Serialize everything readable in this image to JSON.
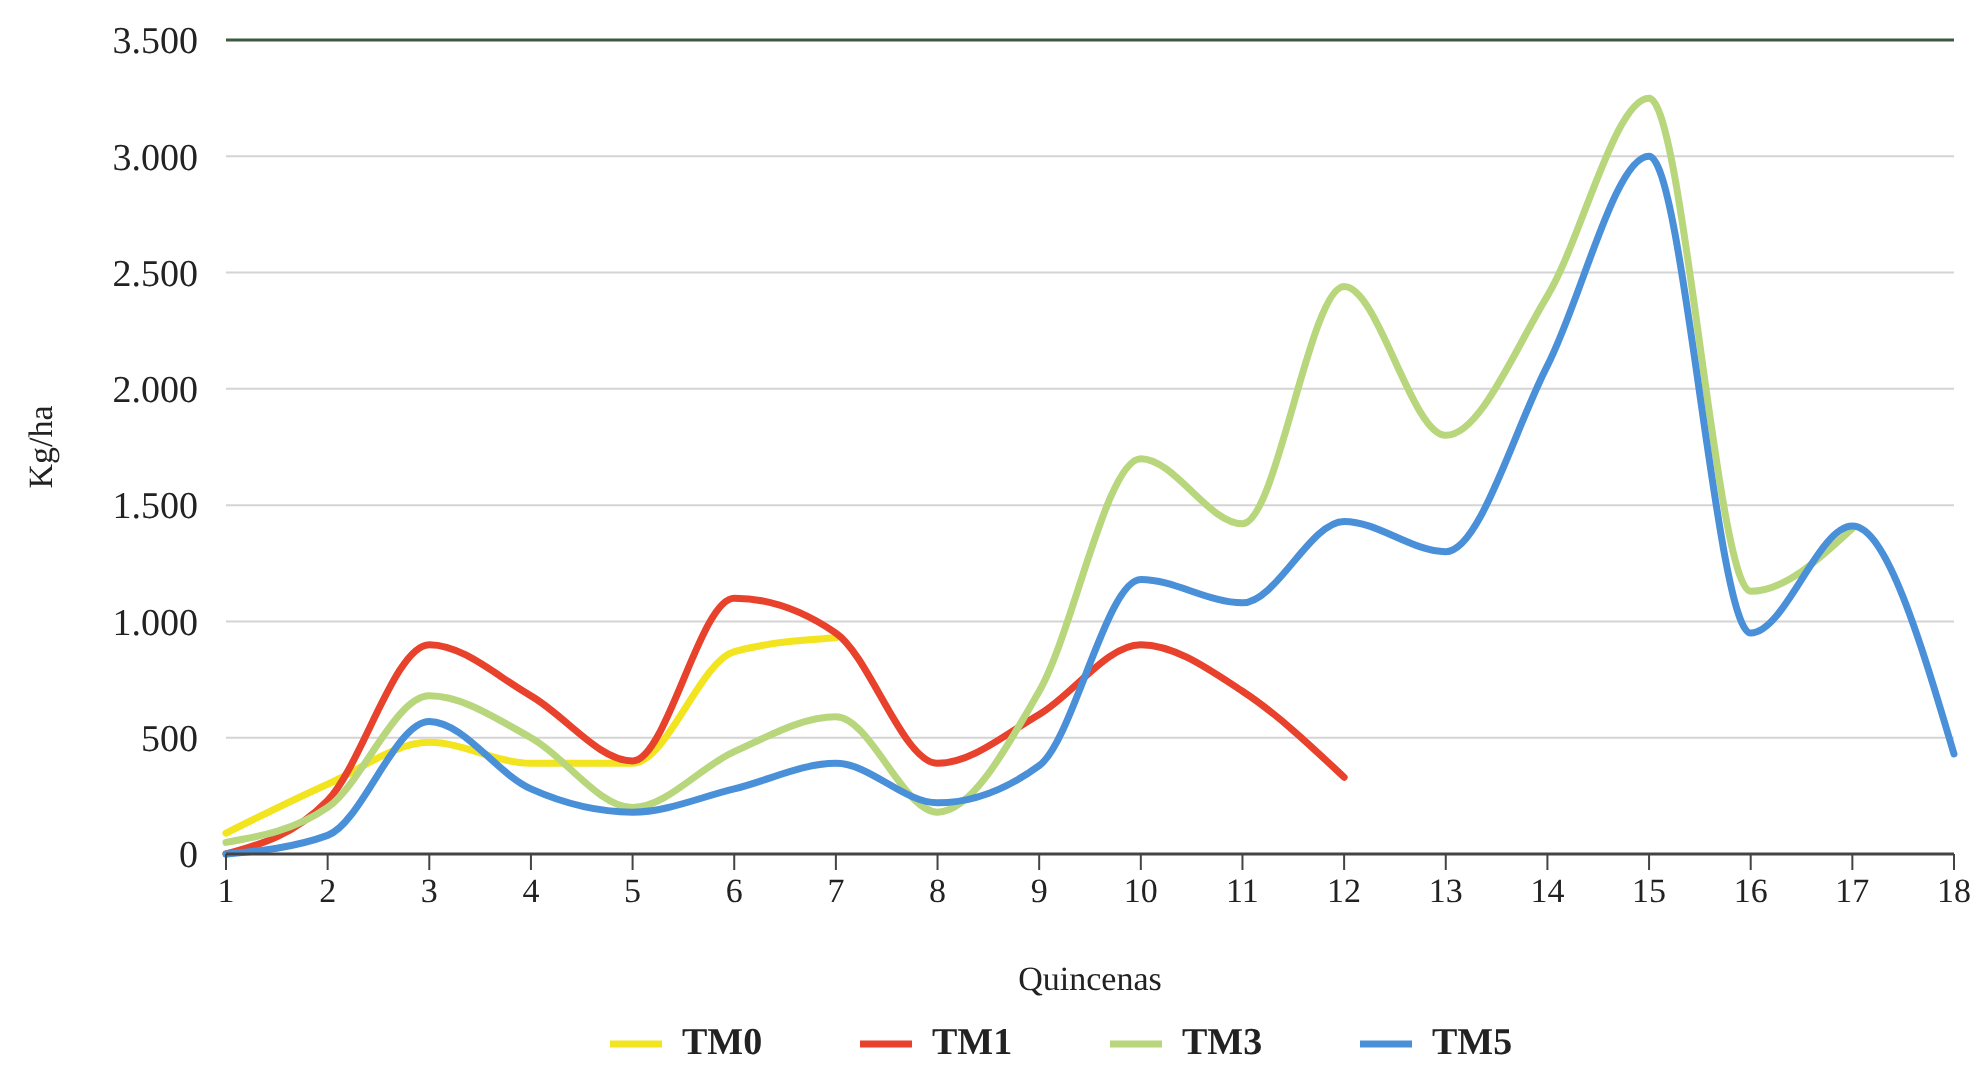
{
  "chart_data": {
    "type": "line",
    "xlabel": "Quincenas",
    "ylabel": "Kg/ha",
    "x": [
      1,
      2,
      3,
      4,
      5,
      6,
      7,
      8,
      9,
      10,
      11,
      12,
      13,
      14,
      15,
      16,
      17,
      18
    ],
    "xlim": [
      1,
      18
    ],
    "xticks": [
      1,
      2,
      3,
      4,
      5,
      6,
      7,
      8,
      9,
      10,
      11,
      12,
      13,
      14,
      15,
      16,
      17,
      18
    ],
    "ylim": [
      0,
      3500
    ],
    "yticks": [
      0,
      500,
      {
        "value": 1000,
        "label": "1.000"
      },
      {
        "value": 1500,
        "label": "1.500"
      },
      {
        "value": 2000,
        "label": "2.000"
      },
      {
        "value": 2500,
        "label": "2.500"
      },
      {
        "value": 3000,
        "label": "3.000"
      },
      {
        "value": 3500,
        "label": "3.500"
      }
    ],
    "grid": "y",
    "legend": "bottom",
    "marker": "none",
    "line_style": "solid",
    "series": [
      {
        "name": "TM0",
        "color": "#f2e41e",
        "values": [
          90,
          300,
          480,
          390,
          390,
          870,
          930,
          null,
          null,
          null,
          null,
          null,
          null,
          null,
          null,
          null,
          null,
          null
        ]
      },
      {
        "name": "TM1",
        "color": "#e8412c",
        "values": [
          0,
          230,
          900,
          680,
          400,
          1100,
          950,
          390,
          600,
          900,
          700,
          330,
          null,
          null,
          null,
          null,
          null,
          null
        ]
      },
      {
        "name": "TM3",
        "color": "#b8d67c",
        "values": [
          50,
          200,
          680,
          500,
          200,
          440,
          590,
          180,
          700,
          1700,
          1420,
          2440,
          1800,
          2400,
          3250,
          1130,
          1400,
          null
        ]
      },
      {
        "name": "TM5",
        "color": "#4a90d9",
        "values": [
          0,
          80,
          570,
          280,
          180,
          280,
          390,
          220,
          380,
          1180,
          1080,
          1430,
          1300,
          2100,
          3000,
          950,
          1410,
          430
        ]
      }
    ]
  }
}
